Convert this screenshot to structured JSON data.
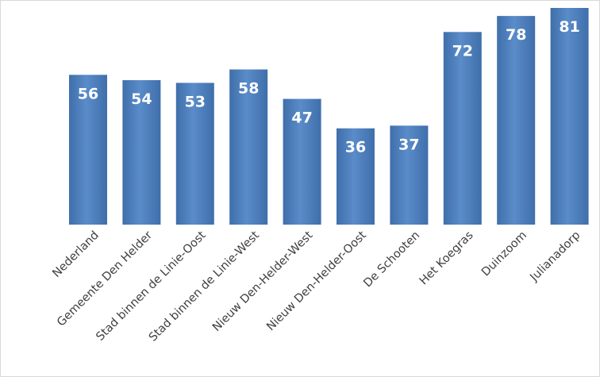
{
  "chart_data": {
    "type": "bar",
    "categories": [
      "Nederland",
      "Gemeente Den Helder",
      "Stad binnen de Linie-Oost",
      "Stad binnen de Linie-West",
      "Nieuw Den-Helder-West",
      "Nieuw Den-Helder-Oost",
      "De Schooten",
      "Het Koegras",
      "Duinzoom",
      "Julianadorp"
    ],
    "values": [
      56,
      54,
      53,
      58,
      47,
      36,
      37,
      72,
      78,
      81
    ],
    "title": "",
    "xlabel": "",
    "ylabel": "",
    "ylim": [
      0,
      81
    ],
    "grid": false,
    "legend": "none",
    "bar_color": "#4f81bd",
    "bar_gradient_dark": "#3f6fab",
    "bar_gradient_light": "#5a8cc9",
    "data_label_color": "#ffffff",
    "tick_label_color": "#404040"
  }
}
